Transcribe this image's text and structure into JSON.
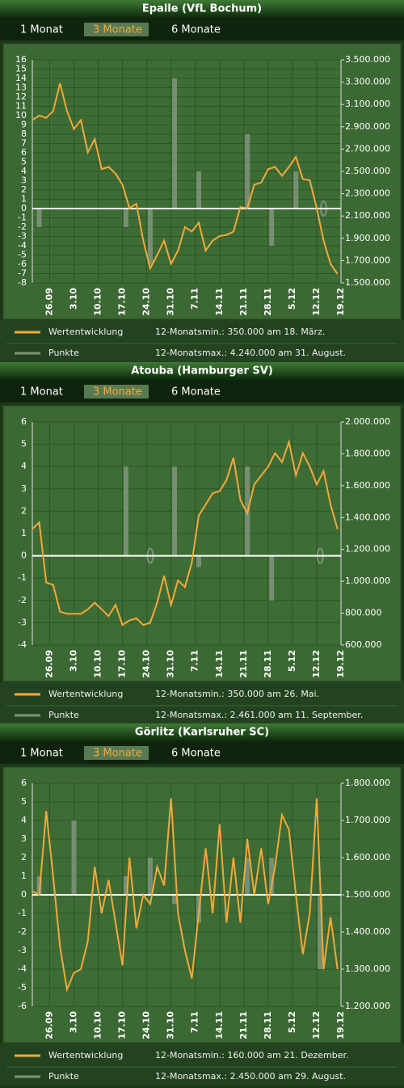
{
  "tabs": [
    "1 Monat",
    "3 Monate",
    "6 Monate"
  ],
  "active_tab": 1,
  "chart_data": [
    {
      "type": "line_bar",
      "title": "Epalle (VfL Bochum)",
      "xlim": [
        0,
        89
      ],
      "xticks": [
        {
          "value": 5,
          "label": "26.09"
        },
        {
          "value": 12,
          "label": "3.10"
        },
        {
          "value": 19,
          "label": "10.10"
        },
        {
          "value": 26,
          "label": "17.10"
        },
        {
          "value": 33,
          "label": "24.10"
        },
        {
          "value": 40,
          "label": "31.10"
        },
        {
          "value": 47,
          "label": "7.11"
        },
        {
          "value": 54,
          "label": "14.11"
        },
        {
          "value": 61,
          "label": "21.11"
        },
        {
          "value": 68,
          "label": "28.11"
        },
        {
          "value": 75,
          "label": "5.12"
        },
        {
          "value": 82,
          "label": "12.12"
        },
        {
          "value": 89,
          "label": "19.12"
        }
      ],
      "ylim": [
        -8,
        16
      ],
      "yticks": [
        -8,
        -7,
        -6,
        -5,
        -4,
        -3,
        -2,
        -1,
        0,
        1,
        2,
        3,
        4,
        5,
        6,
        7,
        8,
        9,
        10,
        11,
        12,
        13,
        14,
        15,
        16
      ],
      "y2lim": [
        1500000,
        3500000
      ],
      "y2ticks": [
        {
          "value": 1500000,
          "label": "1.500.000"
        },
        {
          "value": 1700000,
          "label": "1.700.000"
        },
        {
          "value": 1900000,
          "label": "1.900.000"
        },
        {
          "value": 2100000,
          "label": "2.100.000"
        },
        {
          "value": 2300000,
          "label": "2.300.000"
        },
        {
          "value": 2500000,
          "label": "2.500.000"
        },
        {
          "value": 2700000,
          "label": "2.700.000"
        },
        {
          "value": 2900000,
          "label": "2.900.000"
        },
        {
          "value": 3100000,
          "label": "3.100.000"
        },
        {
          "value": 3300000,
          "label": "3.300.000"
        },
        {
          "value": 3500000,
          "label": "3.500.000"
        }
      ],
      "grid": true,
      "series": [
        {
          "name": "Wertentwicklung",
          "color": "#f2a93b",
          "axis": "y2",
          "x": [
            0,
            2,
            4,
            6,
            8,
            10,
            12,
            14,
            16,
            18,
            20,
            22,
            24,
            26,
            28,
            30,
            32,
            34,
            36,
            38,
            40,
            42,
            44,
            46,
            48,
            50,
            52,
            54,
            56,
            58,
            60,
            62,
            64,
            66,
            68,
            70,
            72,
            74,
            76,
            78,
            80,
            82,
            84,
            86,
            88
          ],
          "values": [
            2960000,
            3000000,
            2980000,
            3040000,
            3290000,
            3040000,
            2880000,
            2960000,
            2670000,
            2790000,
            2520000,
            2540000,
            2480000,
            2380000,
            2170000,
            2210000,
            1880000,
            1630000,
            1750000,
            1880000,
            1670000,
            1790000,
            2000000,
            1960000,
            2040000,
            1790000,
            1880000,
            1920000,
            1930000,
            1960000,
            2180000,
            2170000,
            2380000,
            2400000,
            2520000,
            2540000,
            2460000,
            2540000,
            2630000,
            2430000,
            2420000,
            2170000,
            1880000,
            1670000,
            1580000
          ]
        },
        {
          "name": "Punkte",
          "color": "#7d927a",
          "axis": "y",
          "x": [
            2,
            27,
            34,
            41,
            48,
            62,
            69,
            76,
            84
          ],
          "values": [
            -2,
            -2,
            -6,
            14,
            4,
            8,
            -4,
            4,
            0
          ]
        }
      ],
      "notes": [
        "12-Monatsmin.: 350.000 am 18. März.",
        "12-Monatsmax.: 4.240.000 am 31. August."
      ]
    },
    {
      "type": "line_bar",
      "title": "Atouba (Hamburger SV)",
      "xlim": [
        0,
        89
      ],
      "xticks": [
        {
          "value": 5,
          "label": "26.09"
        },
        {
          "value": 12,
          "label": "3.10"
        },
        {
          "value": 19,
          "label": "10.10"
        },
        {
          "value": 26,
          "label": "17.10"
        },
        {
          "value": 33,
          "label": "24.10"
        },
        {
          "value": 40,
          "label": "31.10"
        },
        {
          "value": 47,
          "label": "7.11"
        },
        {
          "value": 54,
          "label": "14.11"
        },
        {
          "value": 61,
          "label": "21.11"
        },
        {
          "value": 68,
          "label": "28.11"
        },
        {
          "value": 75,
          "label": "5.12"
        },
        {
          "value": 82,
          "label": "12.12"
        },
        {
          "value": 89,
          "label": "19.12"
        }
      ],
      "ylim": [
        -4,
        6
      ],
      "yticks": [
        -4,
        -3,
        -2,
        -1,
        0,
        1,
        2,
        3,
        4,
        5,
        6
      ],
      "y2lim": [
        600000,
        2000000
      ],
      "y2ticks": [
        {
          "value": 600000,
          "label": "600.000"
        },
        {
          "value": 800000,
          "label": "800.000"
        },
        {
          "value": 1000000,
          "label": "1.000.000"
        },
        {
          "value": 1200000,
          "label": "1.200.000"
        },
        {
          "value": 1400000,
          "label": "1.400.000"
        },
        {
          "value": 1600000,
          "label": "1.600.000"
        },
        {
          "value": 1800000,
          "label": "1.800.000"
        },
        {
          "value": 2000000,
          "label": "2.000.000"
        }
      ],
      "grid": true,
      "series": [
        {
          "name": "Wertentwicklung",
          "color": "#f2a93b",
          "axis": "y2",
          "x": [
            0,
            2,
            4,
            6,
            8,
            10,
            12,
            14,
            16,
            18,
            20,
            22,
            24,
            26,
            28,
            30,
            32,
            34,
            36,
            38,
            40,
            42,
            44,
            46,
            48,
            50,
            52,
            54,
            56,
            58,
            60,
            62,
            64,
            66,
            68,
            70,
            72,
            74,
            76,
            78,
            80,
            82,
            84,
            86,
            88
          ],
          "values": [
            1328000,
            1370000,
            992000,
            978000,
            810000,
            796000,
            796000,
            796000,
            824000,
            866000,
            824000,
            782000,
            852000,
            726000,
            754000,
            768000,
            726000,
            740000,
            866000,
            1034000,
            852000,
            1006000,
            964000,
            1118000,
            1412000,
            1482000,
            1552000,
            1566000,
            1636000,
            1776000,
            1510000,
            1426000,
            1608000,
            1664000,
            1720000,
            1804000,
            1748000,
            1874000,
            1664000,
            1804000,
            1720000,
            1608000,
            1692000,
            1482000,
            1328000
          ]
        },
        {
          "name": "Punkte",
          "color": "#7d927a",
          "axis": "y",
          "x": [
            27,
            34,
            41,
            48,
            62,
            69,
            83
          ],
          "values": [
            4,
            0,
            4,
            -0.5,
            4,
            -2,
            0
          ]
        }
      ],
      "notes": [
        "12-Monatsmin.: 350.000 am 26. Mai.",
        "12-Monatsmax.: 2.461.000 am 11. September."
      ]
    },
    {
      "type": "line_bar",
      "title": "Görlitz (Karlsruher SC)",
      "xlim": [
        0,
        89
      ],
      "xticks": [
        {
          "value": 5,
          "label": "26.09"
        },
        {
          "value": 12,
          "label": "3.10"
        },
        {
          "value": 19,
          "label": "10.10"
        },
        {
          "value": 26,
          "label": "17.10"
        },
        {
          "value": 33,
          "label": "24.10"
        },
        {
          "value": 40,
          "label": "31.10"
        },
        {
          "value": 47,
          "label": "7.11"
        },
        {
          "value": 54,
          "label": "14.11"
        },
        {
          "value": 61,
          "label": "21.11"
        },
        {
          "value": 68,
          "label": "28.11"
        },
        {
          "value": 75,
          "label": "5.12"
        },
        {
          "value": 82,
          "label": "12.12"
        },
        {
          "value": 89,
          "label": "19.12"
        }
      ],
      "ylim": [
        -6,
        6
      ],
      "yticks": [
        -6,
        -5,
        -4,
        -3,
        -2,
        -1,
        0,
        1,
        2,
        3,
        4,
        5,
        6
      ],
      "y2lim": [
        1200000,
        1800000
      ],
      "y2ticks": [
        {
          "value": 1200000,
          "label": "1.200.000"
        },
        {
          "value": 1300000,
          "label": "1.300.000"
        },
        {
          "value": 1400000,
          "label": "1.400.000"
        },
        {
          "value": 1500000,
          "label": "1.500.000"
        },
        {
          "value": 1600000,
          "label": "1.600.000"
        },
        {
          "value": 1700000,
          "label": "1.700.000"
        },
        {
          "value": 1800000,
          "label": "1.800.000"
        }
      ],
      "grid": true,
      "series": [
        {
          "name": "Wertentwicklung",
          "color": "#f2a93b",
          "axis": "y2",
          "x": [
            0,
            2,
            4,
            6,
            8,
            10,
            12,
            14,
            16,
            18,
            20,
            22,
            24,
            26,
            28,
            30,
            32,
            34,
            36,
            38,
            40,
            42,
            44,
            46,
            48,
            50,
            52,
            54,
            56,
            58,
            60,
            62,
            64,
            66,
            68,
            70,
            72,
            74,
            76,
            78,
            80,
            82,
            84,
            86,
            88
          ],
          "values": [
            1510000,
            1500000,
            1725000,
            1550000,
            1360000,
            1245000,
            1290000,
            1300000,
            1375000,
            1575000,
            1450000,
            1540000,
            1425000,
            1310000,
            1600000,
            1410000,
            1500000,
            1475000,
            1575000,
            1525000,
            1760000,
            1450000,
            1350000,
            1275000,
            1450000,
            1625000,
            1450000,
            1690000,
            1425000,
            1600000,
            1425000,
            1650000,
            1500000,
            1625000,
            1475000,
            1575000,
            1715000,
            1675000,
            1500000,
            1340000,
            1450000,
            1760000,
            1300000,
            1440000,
            1300000
          ]
        },
        {
          "name": "Punkte",
          "color": "#7d927a",
          "axis": "y",
          "x": [
            2,
            12,
            27,
            34,
            41,
            48,
            62,
            69,
            83
          ],
          "values": [
            1,
            4,
            1,
            2,
            -0.5,
            -1.5,
            2,
            2,
            -4
          ]
        }
      ],
      "notes": [
        "12-Monatsmin.: 160.000 am 21. Dezember.",
        "12-Monatsmax.: 2.450.000 am 29. August."
      ]
    }
  ]
}
